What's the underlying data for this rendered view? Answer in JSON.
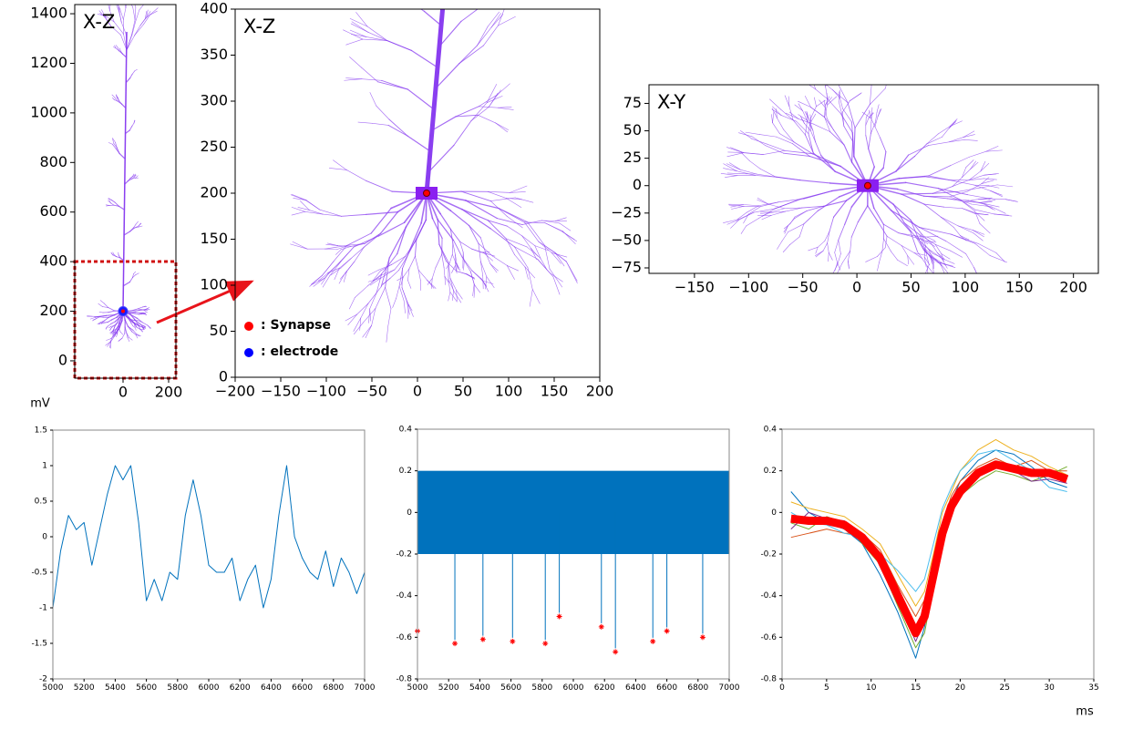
{
  "chart_data": [
    {
      "type": "neuron",
      "title": "X-Z",
      "xlim": [
        -212,
        232
      ],
      "ylim": [
        -70,
        1437
      ],
      "xticks": [
        0,
        200
      ],
      "yticks": [
        0,
        200,
        400,
        600,
        800,
        1000,
        1200,
        1400
      ],
      "soma": [
        0,
        200
      ]
    },
    {
      "type": "neuron",
      "title": "X-Z",
      "xlim": [
        -200,
        200
      ],
      "ylim": [
        0,
        400
      ],
      "xticks": [
        {
          "value": -200,
          "label": "−200"
        },
        {
          "value": -150,
          "label": "−150"
        },
        {
          "value": -100,
          "label": "−100"
        },
        {
          "value": -50,
          "label": "−50"
        },
        0,
        50,
        100,
        150,
        200
      ],
      "yticks": [
        0,
        50,
        100,
        150,
        200,
        250,
        300,
        350,
        400
      ],
      "soma": [
        10,
        200
      ],
      "legend": [
        {
          "name": ": Synapse",
          "color": "#ff0000"
        },
        {
          "name": ": electrode",
          "color": "#0000ff"
        }
      ]
    },
    {
      "type": "neuron",
      "title": "X-Y",
      "xlim": [
        -192,
        223
      ],
      "ylim": [
        -80,
        92
      ],
      "xticks": [
        {
          "value": -150,
          "label": "−150"
        },
        {
          "value": -100,
          "label": "−100"
        },
        {
          "value": -50,
          "label": "−50"
        },
        0,
        50,
        100,
        150,
        200
      ],
      "yticks": [
        {
          "value": -75,
          "label": "−75"
        },
        {
          "value": -50,
          "label": "−50"
        },
        {
          "value": -25,
          "label": "−25"
        },
        0,
        25,
        50,
        75
      ],
      "soma": [
        10,
        0
      ]
    },
    {
      "type": "line",
      "y_label": "mV",
      "xlim": [
        5000,
        7000
      ],
      "ylim": [
        -2,
        1.5
      ],
      "xticks": [
        5000,
        5200,
        5400,
        5600,
        5800,
        6000,
        6200,
        6400,
        6600,
        6800,
        7000
      ],
      "yticks": [
        -2,
        -1.5,
        -1,
        -0.5,
        0,
        0.5,
        1,
        1.5
      ],
      "x": [
        5000,
        5050,
        5100,
        5150,
        5200,
        5250,
        5300,
        5350,
        5400,
        5450,
        5500,
        5550,
        5600,
        5650,
        5700,
        5750,
        5800,
        5850,
        5900,
        5950,
        6000,
        6050,
        6100,
        6150,
        6200,
        6250,
        6300,
        6350,
        6400,
        6450,
        6500,
        6550,
        6600,
        6650,
        6700,
        6750,
        6800,
        6850,
        6900,
        6950,
        7000
      ],
      "series": [
        {
          "color": "#0072bd",
          "values": [
            -1.0,
            -0.2,
            0.3,
            0.1,
            0.2,
            -0.4,
            0.1,
            0.6,
            1.0,
            0.8,
            1.0,
            0.2,
            -0.9,
            -0.6,
            -0.9,
            -0.5,
            -0.6,
            0.3,
            0.8,
            0.3,
            -0.4,
            -0.5,
            -0.5,
            -0.3,
            -0.9,
            -0.6,
            -0.4,
            -1.0,
            -0.6,
            0.3,
            1.0,
            0.0,
            -0.3,
            -0.5,
            -0.6,
            -0.2,
            -0.7,
            -0.3,
            -0.5,
            -0.8,
            -0.5
          ]
        }
      ]
    },
    {
      "type": "spikes",
      "xlim": [
        5000,
        7000
      ],
      "ylim": [
        -0.8,
        0.4
      ],
      "xticks": [
        5000,
        5200,
        5400,
        5600,
        5800,
        6000,
        6200,
        6400,
        6600,
        6800,
        7000
      ],
      "yticks": [
        -0.8,
        -0.6,
        -0.4,
        -0.2,
        0,
        0.2,
        0.4
      ],
      "color": "#0072bd",
      "marker_color": "#ff0000",
      "noise": [
        -0.2,
        0.2
      ],
      "x": [
        5000,
        5240,
        5420,
        5610,
        5820,
        5910,
        6180,
        6270,
        6510,
        6600,
        6830
      ],
      "values": [
        -0.57,
        -0.63,
        -0.61,
        -0.62,
        -0.63,
        -0.5,
        -0.55,
        -0.67,
        -0.62,
        -0.57,
        -0.6
      ]
    },
    {
      "type": "line",
      "x_label": "ms",
      "xlim": [
        0,
        35
      ],
      "ylim": [
        -0.8,
        0.4
      ],
      "xticks": [
        0,
        5,
        10,
        15,
        20,
        25,
        30,
        35
      ],
      "yticks": [
        -0.8,
        -0.6,
        -0.4,
        -0.2,
        0,
        0.2,
        0.4
      ],
      "x": [
        1,
        3,
        5,
        7,
        9,
        11,
        13,
        15,
        16,
        17,
        18,
        19,
        20,
        22,
        24,
        26,
        28,
        30,
        32
      ],
      "series": [
        {
          "color": "#0072bd",
          "values": [
            0.1,
            0.0,
            -0.05,
            -0.08,
            -0.15,
            -0.3,
            -0.48,
            -0.7,
            -0.55,
            -0.32,
            -0.12,
            0.05,
            0.15,
            0.25,
            0.3,
            0.28,
            0.22,
            0.15,
            0.12
          ]
        },
        {
          "color": "#d95319",
          "values": [
            -0.12,
            -0.1,
            -0.08,
            -0.1,
            -0.1,
            -0.18,
            -0.35,
            -0.5,
            -0.42,
            -0.25,
            -0.05,
            0.08,
            0.15,
            0.22,
            0.26,
            0.22,
            0.25,
            0.2,
            0.2
          ]
        },
        {
          "color": "#edb120",
          "values": [
            0.05,
            0.02,
            0.0,
            -0.02,
            -0.08,
            -0.15,
            -0.3,
            -0.45,
            -0.38,
            -0.2,
            0.0,
            0.1,
            0.2,
            0.3,
            0.35,
            0.3,
            0.27,
            0.22,
            0.18
          ]
        },
        {
          "color": "#77ac30",
          "values": [
            -0.05,
            -0.08,
            -0.02,
            -0.05,
            -0.15,
            -0.25,
            -0.45,
            -0.65,
            -0.58,
            -0.35,
            -0.15,
            0.0,
            0.08,
            0.15,
            0.2,
            0.18,
            0.15,
            0.18,
            0.22
          ]
        },
        {
          "color": "#4dbeee",
          "values": [
            0.0,
            -0.05,
            -0.06,
            -0.1,
            -0.12,
            -0.2,
            -0.28,
            -0.38,
            -0.32,
            -0.15,
            0.02,
            0.12,
            0.2,
            0.28,
            0.3,
            0.25,
            0.2,
            0.12,
            0.1
          ]
        },
        {
          "color": "#7e2f8e",
          "values": [
            -0.08,
            0.0,
            -0.03,
            -0.04,
            -0.1,
            -0.22,
            -0.42,
            -0.62,
            -0.52,
            -0.28,
            -0.08,
            0.04,
            0.12,
            0.2,
            0.24,
            0.2,
            0.15,
            0.16,
            0.14
          ]
        },
        {
          "color": "#ff0000",
          "values": [
            -0.03,
            -0.04,
            -0.04,
            -0.06,
            -0.12,
            -0.22,
            -0.4,
            -0.58,
            -0.5,
            -0.3,
            -0.1,
            0.03,
            0.1,
            0.19,
            0.23,
            0.21,
            0.19,
            0.19,
            0.16
          ]
        }
      ]
    }
  ]
}
